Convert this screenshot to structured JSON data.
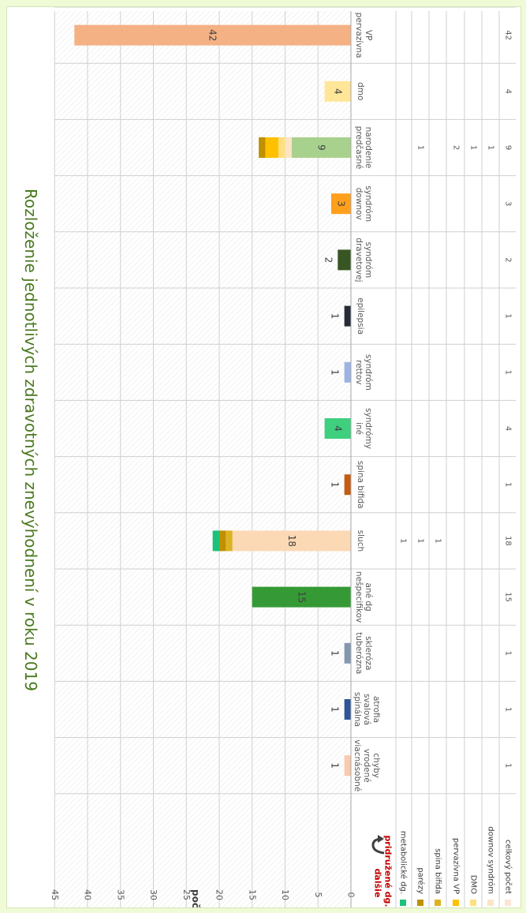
{
  "chart_data": {
    "type": "bar",
    "title": "Rozloženie jednotlivých zdravotných znevýhodnení v roku 2019",
    "ylabel": "počet",
    "ylim": [
      0,
      45
    ],
    "yticks": [
      "0",
      "5",
      "10",
      "15",
      "20",
      "25",
      "30",
      "35",
      "40",
      "45"
    ],
    "categories": [
      [
        "pervazívna",
        "VP"
      ],
      [
        "dmo"
      ],
      [
        "predčasné",
        "narodenie"
      ],
      [
        "downov",
        "syndróm"
      ],
      [
        "dravetovej",
        "syndróm"
      ],
      [
        "epilepsia"
      ],
      [
        "rettov",
        "syndróm"
      ],
      [
        "iné",
        "syndrómy"
      ],
      [
        "spina bifida"
      ],
      [
        "sluch"
      ],
      [
        "nešpecifikov",
        "ané dg"
      ],
      [
        "tuberózna",
        "skleróza"
      ],
      [
        "spinálna",
        "svalová",
        "atrofia"
      ],
      [
        "viacnásobné",
        "vrodené",
        "chyby"
      ]
    ],
    "totals": [
      42,
      4,
      9,
      3,
      2,
      1,
      1,
      4,
      1,
      18,
      15,
      1,
      1,
      1
    ],
    "main_colors": [
      "#f4b183",
      "#ffe699",
      "#a9d18e",
      "#ff9f1c",
      "#375623",
      "#262b38",
      "#9db3e3",
      "#3ecf7f",
      "#c55a11",
      "#fbd9b4",
      "#359a35",
      "#8497b0",
      "#2f5597",
      "#f8cbad"
    ],
    "label_outside": [
      false,
      false,
      false,
      false,
      true,
      true,
      true,
      false,
      true,
      false,
      false,
      true,
      true,
      true
    ],
    "secondary_header": [
      "ďalšie",
      "pridružené dg."
    ],
    "secondary": [
      {
        "name": "metabolické dg.",
        "color": "#1ec07a",
        "values": [
          null,
          null,
          null,
          null,
          null,
          null,
          null,
          null,
          null,
          1,
          null,
          null,
          null,
          null
        ]
      },
      {
        "name": "parézy",
        "color": "#bf9000",
        "values": [
          null,
          null,
          1,
          null,
          null,
          null,
          null,
          null,
          null,
          1,
          null,
          null,
          null,
          null
        ]
      },
      {
        "name": "spina bifida",
        "color": "#ddb223",
        "values": [
          null,
          null,
          null,
          null,
          null,
          null,
          null,
          null,
          null,
          1,
          null,
          null,
          null,
          null
        ]
      },
      {
        "name": "pervazívna VP",
        "color": "#ffc000",
        "values": [
          null,
          null,
          2,
          null,
          null,
          null,
          null,
          null,
          null,
          null,
          null,
          null,
          null,
          null
        ]
      },
      {
        "name": "DMO",
        "color": "#ffe080",
        "values": [
          null,
          null,
          1,
          null,
          null,
          null,
          null,
          null,
          null,
          null,
          null,
          null,
          null,
          null
        ]
      },
      {
        "name": "downov syndróm",
        "color": "#fce4c4",
        "values": [
          null,
          null,
          1,
          null,
          null,
          null,
          null,
          null,
          null,
          null,
          null,
          null,
          null,
          null
        ]
      }
    ],
    "total_row_label": "celkový počet",
    "total_row_color": "#fbe5d6",
    "grid": true
  }
}
